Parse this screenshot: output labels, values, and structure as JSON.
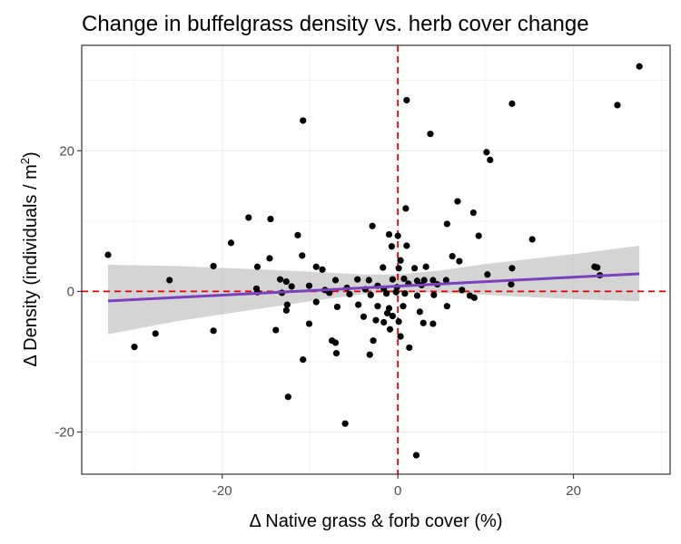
{
  "chart_data": {
    "type": "scatter",
    "title": "Change in buffelgrass density vs. herb cover change",
    "xlabel": "Δ Native grass & forb cover (%)",
    "ylabel": {
      "prefix": "Δ Density (individuals / m",
      "sup": "2",
      "suffix": ")"
    },
    "xlim": [
      -36,
      31
    ],
    "ylim": [
      -26,
      35
    ],
    "x_ticks": [
      -20,
      0,
      20
    ],
    "y_ticks": [
      -20,
      0,
      20
    ],
    "x_tick_labels": [
      "-20",
      "0",
      "20"
    ],
    "y_tick_labels": [
      "-20",
      "0",
      "20"
    ],
    "grid": true,
    "reference_lines": {
      "x": 0,
      "y": 0,
      "color": "#e00000",
      "style": "dashed"
    },
    "colors": {
      "points": "#000000",
      "fit_line": "#7b3fbf",
      "confidence_band": "#bdbdbd",
      "grid": "#ebebeb",
      "panel_border": "#333333"
    },
    "fit": {
      "x_range": [
        -33,
        27.5
      ],
      "intercept": 0.75,
      "slope": 0.0639
    },
    "confidence_band": [
      {
        "x": -33,
        "lower": -6.1,
        "upper": 3.8
      },
      {
        "x": -25,
        "lower": -4.2,
        "upper": 3.6
      },
      {
        "x": -17,
        "lower": -2.7,
        "upper": 3.2
      },
      {
        "x": -10,
        "lower": -1.4,
        "upper": 2.8
      },
      {
        "x": -4,
        "lower": -0.4,
        "upper": 2.4
      },
      {
        "x": 0,
        "lower": -0.1,
        "upper": 2.4
      },
      {
        "x": 5,
        "lower": -0.2,
        "upper": 3.0
      },
      {
        "x": 10,
        "lower": -0.5,
        "upper": 3.9
      },
      {
        "x": 15,
        "lower": -0.8,
        "upper": 4.6
      },
      {
        "x": 20,
        "lower": -1.1,
        "upper": 5.3
      },
      {
        "x": 27.5,
        "lower": -1.4,
        "upper": 6.5
      }
    ],
    "points": [
      [
        27.5,
        32
      ],
      [
        25,
        26.5
      ],
      [
        13,
        26.7
      ],
      [
        1,
        27.2
      ],
      [
        -10.8,
        24.3
      ],
      [
        3.7,
        22.4
      ],
      [
        10.1,
        19.8
      ],
      [
        10.5,
        18.7
      ],
      [
        0.9,
        11.8
      ],
      [
        6.8,
        12.8
      ],
      [
        8.6,
        11.2
      ],
      [
        5.6,
        9.6
      ],
      [
        -2.9,
        9.3
      ],
      [
        -1,
        8.1
      ],
      [
        0,
        7.9
      ],
      [
        -17,
        10.5
      ],
      [
        -14.5,
        10.3
      ],
      [
        -19,
        6.9
      ],
      [
        -11.4,
        8
      ],
      [
        -0.7,
        6.4
      ],
      [
        1,
        6.5
      ],
      [
        9.2,
        7.9
      ],
      [
        15.3,
        7.4
      ],
      [
        -33,
        5.2
      ],
      [
        -10.9,
        5.1
      ],
      [
        -14.6,
        4.7
      ],
      [
        0.3,
        4.4
      ],
      [
        6.2,
        5
      ],
      [
        7,
        4.3
      ],
      [
        -21,
        3.6
      ],
      [
        -16,
        3.5
      ],
      [
        -9.3,
        3.5
      ],
      [
        -8.6,
        3.1
      ],
      [
        -1.7,
        3.4
      ],
      [
        0.1,
        3.3
      ],
      [
        1.9,
        3.3
      ],
      [
        3.2,
        3.5
      ],
      [
        13,
        3.3
      ],
      [
        22.4,
        3.5
      ],
      [
        22.7,
        3.4
      ],
      [
        -26,
        1.6
      ],
      [
        -13.4,
        1.7
      ],
      [
        -12.7,
        1.4
      ],
      [
        -7.1,
        1.6
      ],
      [
        -4.6,
        1.7
      ],
      [
        -3.3,
        1.6
      ],
      [
        -0.6,
        1.7
      ],
      [
        0.7,
        1.8
      ],
      [
        2.2,
        1.5
      ],
      [
        3,
        1.6
      ],
      [
        4,
        1.6
      ],
      [
        5.5,
        1.6
      ],
      [
        10.2,
        2.4
      ],
      [
        12.9,
        1
      ],
      [
        23,
        2.3
      ],
      [
        -16.1,
        0.4
      ],
      [
        -12.1,
        0.7
      ],
      [
        -10.1,
        0.8
      ],
      [
        -8.3,
        0.2
      ],
      [
        -5.8,
        0.5
      ],
      [
        -3.7,
        0.3
      ],
      [
        -2.3,
        0.8
      ],
      [
        -1.6,
        0.4
      ],
      [
        -0.1,
        0.6
      ],
      [
        1.2,
        1.1
      ],
      [
        2.7,
        0.9
      ],
      [
        4.5,
        1
      ],
      [
        7.3,
        0.2
      ],
      [
        -16,
        -0.1
      ],
      [
        -13.2,
        -0.2
      ],
      [
        -7.8,
        -0.2
      ],
      [
        -5.5,
        -0.4
      ],
      [
        -3.1,
        -0.5
      ],
      [
        -1.3,
        -0.3
      ],
      [
        -0.2,
        -0.1
      ],
      [
        0.8,
        -0.3
      ],
      [
        2.2,
        -0.6
      ],
      [
        4.1,
        -0.5
      ],
      [
        8.2,
        -0.6
      ],
      [
        -12.6,
        -1.9
      ],
      [
        -9.3,
        -1.5
      ],
      [
        -6.9,
        -2.2
      ],
      [
        -4.5,
        -1.9
      ],
      [
        -2.3,
        -2.1
      ],
      [
        -1,
        -2.4
      ],
      [
        0.6,
        -2.1
      ],
      [
        2.5,
        -2.9
      ],
      [
        5.6,
        -2.1
      ],
      [
        8.7,
        -0.9
      ],
      [
        -12.7,
        -2.7
      ],
      [
        -1.2,
        -3.1
      ],
      [
        -0.6,
        -3.5
      ],
      [
        -3.9,
        -3.6
      ],
      [
        -2.5,
        -4.1
      ],
      [
        -1.6,
        -4.4
      ],
      [
        0.1,
        -4.3
      ],
      [
        2.9,
        -4.5
      ],
      [
        4,
        -4.6
      ],
      [
        -13.9,
        -5.5
      ],
      [
        -10.1,
        -4.6
      ],
      [
        -0.9,
        -5.4
      ],
      [
        -21,
        -5.6
      ],
      [
        0.3,
        -6.4
      ],
      [
        -27.6,
        -6
      ],
      [
        -30,
        -7.9
      ],
      [
        -7.5,
        -7
      ],
      [
        -7.1,
        -7.3
      ],
      [
        -2.8,
        -7
      ],
      [
        1.3,
        -8
      ],
      [
        -7,
        -8.8
      ],
      [
        -3.2,
        -9
      ],
      [
        -10.8,
        -9.7
      ],
      [
        -12.5,
        -15
      ],
      [
        -6,
        -18.8
      ],
      [
        2.1,
        -23.3
      ]
    ]
  }
}
